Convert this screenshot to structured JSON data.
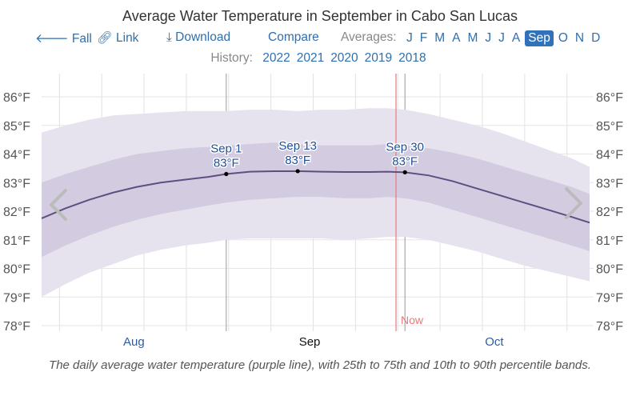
{
  "header": {
    "title": "Average Water Temperature in September in Cabo San Lucas",
    "nav": {
      "prev_label": "Fall",
      "link_label": "Link",
      "download_label": "Download",
      "compare_label": "Compare",
      "averages_label": "Averages:",
      "months": [
        "J",
        "F",
        "M",
        "A",
        "M",
        "J",
        "J",
        "A",
        "Sep",
        "O",
        "N",
        "D"
      ],
      "active_month_index": 8
    },
    "history": {
      "label": "History:",
      "years": [
        "2022",
        "2021",
        "2020",
        "2019",
        "2018"
      ]
    }
  },
  "colors": {
    "link": "#2f6fad",
    "active_month_bg": "#2f72b9",
    "mean_line": "#5e4f80",
    "band_25_75": "#d3cce0",
    "band_10_90": "#e7e3ee",
    "now_line": "#e87a7a",
    "annotation_text": "#1f4f9c"
  },
  "chart_data": {
    "type": "area",
    "title": "Average Water Temperature in September in Cabo San Lucas",
    "xlabel": "",
    "ylabel": "",
    "x_unit": "days since Aug 1",
    "xlim": [
      0,
      92
    ],
    "ylim": [
      77.8,
      86.6
    ],
    "y_ticks": [
      78,
      79,
      80,
      81,
      82,
      83,
      84,
      85,
      86
    ],
    "y_tick_labels": [
      "78°F",
      "79°F",
      "80°F",
      "81°F",
      "82°F",
      "83°F",
      "84°F",
      "85°F",
      "86°F"
    ],
    "x_month_labels": [
      {
        "label": "Aug",
        "day": 15.5,
        "highlight": false
      },
      {
        "label": "Sep",
        "day": 45,
        "highlight": true
      },
      {
        "label": "Oct",
        "day": 76,
        "highlight": false
      }
    ],
    "grid": true,
    "x": [
      0,
      4,
      8,
      12,
      16,
      20,
      24,
      28,
      31,
      35,
      39,
      43,
      47,
      51,
      55,
      58,
      61,
      65,
      69,
      73,
      77,
      81,
      85,
      89,
      92
    ],
    "series": [
      {
        "name": "mean",
        "values": [
          81.75,
          82.1,
          82.4,
          82.65,
          82.85,
          83.0,
          83.1,
          83.2,
          83.3,
          83.38,
          83.4,
          83.4,
          83.38,
          83.37,
          83.37,
          83.38,
          83.36,
          83.25,
          83.05,
          82.8,
          82.55,
          82.3,
          82.05,
          81.8,
          81.6
        ]
      },
      {
        "name": "p25",
        "values": [
          80.4,
          80.8,
          81.15,
          81.45,
          81.7,
          81.9,
          82.05,
          82.2,
          82.3,
          82.4,
          82.45,
          82.5,
          82.5,
          82.45,
          82.45,
          82.5,
          82.45,
          82.3,
          82.05,
          81.8,
          81.55,
          81.3,
          81.05,
          80.8,
          80.6
        ]
      },
      {
        "name": "p75",
        "values": [
          83.0,
          83.3,
          83.55,
          83.8,
          84.0,
          84.1,
          84.2,
          84.25,
          84.3,
          84.35,
          84.4,
          84.35,
          84.3,
          84.3,
          84.3,
          84.35,
          84.3,
          84.2,
          84.05,
          83.85,
          83.6,
          83.35,
          83.1,
          82.85,
          82.6
        ]
      },
      {
        "name": "p10",
        "values": [
          79.0,
          79.45,
          79.85,
          80.15,
          80.45,
          80.65,
          80.8,
          80.9,
          81.0,
          81.05,
          81.05,
          81.05,
          81.05,
          81.0,
          81.05,
          81.1,
          81.1,
          81.0,
          80.8,
          80.6,
          80.35,
          80.1,
          79.9,
          79.7,
          79.55
        ]
      },
      {
        "name": "p90",
        "values": [
          84.75,
          85.0,
          85.2,
          85.35,
          85.4,
          85.45,
          85.5,
          85.5,
          85.5,
          85.55,
          85.55,
          85.5,
          85.55,
          85.55,
          85.6,
          85.6,
          85.55,
          85.4,
          85.2,
          85.0,
          84.75,
          84.45,
          84.15,
          83.85,
          83.55
        ]
      }
    ],
    "annotations": [
      {
        "date": "Sep 1",
        "value_label": "83°F",
        "day": 31,
        "value": 83.3
      },
      {
        "date": "Sep 13",
        "value_label": "83°F",
        "day": 43,
        "value": 83.4
      },
      {
        "date": "Sep 30",
        "value_label": "83°F",
        "day": 61,
        "value": 83.36
      }
    ],
    "now": {
      "label": "Now",
      "day": 59.5
    },
    "month_boundaries": [
      31,
      61
    ],
    "caption": "The daily average water temperature (purple line), with 25th to 75th and 10th to 90th percentile bands."
  }
}
